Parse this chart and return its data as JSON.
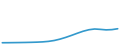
{
  "x": [
    0,
    1,
    2,
    3,
    4,
    5,
    6,
    7,
    8,
    9,
    10,
    11,
    12,
    13,
    14,
    15,
    16,
    17,
    18,
    19,
    20
  ],
  "y": [
    50,
    52,
    55,
    58,
    62,
    67,
    74,
    85,
    105,
    140,
    195,
    265,
    345,
    430,
    510,
    570,
    600,
    585,
    565,
    575,
    610
  ],
  "line_color": "#3399cc",
  "background_color": "#ffffff",
  "linewidth": 1.2,
  "ylim_min": 0,
  "ylim_max": 1800
}
